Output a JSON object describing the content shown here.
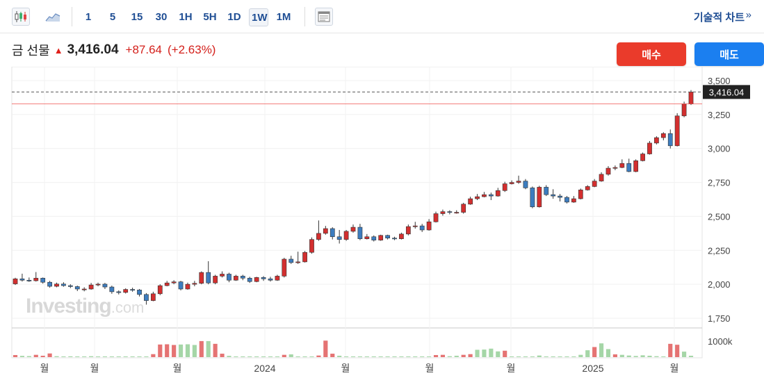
{
  "toolbar": {
    "chart_type_icons": [
      "candlestick-icon",
      "area-chart-icon"
    ],
    "intervals": [
      "1",
      "5",
      "15",
      "30",
      "1H",
      "5H",
      "1D",
      "1W",
      "1M"
    ],
    "active_interval": "1W",
    "extra_icon": "news-panel-icon",
    "tech_chart_label": "기술적 차트",
    "tech_chart_arrow": "»"
  },
  "quote": {
    "name": "금 선물",
    "direction": "up",
    "price": "3,416.04",
    "change": "+87.64",
    "change_pct": "(+2.63%)"
  },
  "buttons": {
    "buy": "매수",
    "sell": "매도"
  },
  "watermark": {
    "brand": "Investing",
    "suffix": ".com"
  },
  "colors": {
    "up": "#d32f2f",
    "down": "#3d7dbf",
    "vol_up": "#e57373",
    "vol_down": "#a5d6a7",
    "price_line": "#222222",
    "prev_close_line": "#ef5350"
  },
  "chart_data": {
    "type": "candlestick",
    "interval": "1W",
    "y_ticks": [
      "3,500",
      "3,250",
      "3,000",
      "2,750",
      "2,500",
      "2,250",
      "2,000",
      "1,750"
    ],
    "ylim": [
      1700,
      3560
    ],
    "current_price_label": "3,416.04",
    "current_price": 3416.04,
    "prev_close": 3328.4,
    "volume_tick": "1000k",
    "volume_max": 1000000,
    "x_labels": [
      "월",
      "월",
      "월",
      "2024",
      "월",
      "월",
      "월",
      "2025",
      "월"
    ],
    "grid": true,
    "candles": [
      [
        2003,
        2040,
        1995,
        2048
      ],
      [
        2040,
        2030,
        2020,
        2078
      ],
      [
        2030,
        2026,
        2018,
        2050
      ],
      [
        2026,
        2045,
        2020,
        2090
      ],
      [
        2045,
        2015,
        2005,
        2050
      ],
      [
        2015,
        1985,
        1975,
        2025
      ],
      [
        1985,
        2002,
        1978,
        2012
      ],
      [
        2002,
        1990,
        1982,
        2015
      ],
      [
        1990,
        1983,
        1972,
        2000
      ],
      [
        1983,
        1965,
        1950,
        1990
      ],
      [
        1965,
        1965,
        1948,
        1978
      ],
      [
        1965,
        1995,
        1960,
        2010
      ],
      [
        1995,
        2001,
        1985,
        2012
      ],
      [
        2001,
        1980,
        1965,
        2010
      ],
      [
        1980,
        1945,
        1930,
        1990
      ],
      [
        1945,
        1940,
        1925,
        1955
      ],
      [
        1940,
        1962,
        1932,
        1970
      ],
      [
        1962,
        1958,
        1945,
        1975
      ],
      [
        1958,
        1925,
        1910,
        1965
      ],
      [
        1925,
        1880,
        1850,
        1935
      ],
      [
        1880,
        1930,
        1875,
        1945
      ],
      [
        1930,
        1990,
        1920,
        2000
      ],
      [
        1990,
        2010,
        1985,
        2025
      ],
      [
        2010,
        2018,
        2000,
        2030
      ],
      [
        2018,
        1965,
        1955,
        2025
      ],
      [
        1965,
        2000,
        1960,
        2012
      ],
      [
        2000,
        2007,
        1985,
        2025
      ],
      [
        2007,
        2087,
        2000,
        2095
      ],
      [
        2087,
        2010,
        2000,
        2170
      ],
      [
        2010,
        2060,
        2000,
        2070
      ],
      [
        2060,
        2075,
        2050,
        2095
      ],
      [
        2075,
        2030,
        2015,
        2085
      ],
      [
        2030,
        2060,
        2025,
        2070
      ],
      [
        2060,
        2045,
        2030,
        2070
      ],
      [
        2045,
        2020,
        2010,
        2055
      ],
      [
        2020,
        2050,
        2015,
        2055
      ],
      [
        2050,
        2040,
        2025,
        2060
      ],
      [
        2040,
        2030,
        2020,
        2055
      ],
      [
        2030,
        2060,
        2025,
        2070
      ],
      [
        2060,
        2185,
        2050,
        2195
      ],
      [
        2185,
        2160,
        2150,
        2210
      ],
      [
        2160,
        2165,
        2150,
        2240
      ],
      [
        2165,
        2235,
        2160,
        2245
      ],
      [
        2235,
        2330,
        2225,
        2345
      ],
      [
        2330,
        2375,
        2320,
        2470
      ],
      [
        2375,
        2410,
        2365,
        2430
      ],
      [
        2410,
        2350,
        2330,
        2420
      ],
      [
        2350,
        2330,
        2300,
        2400
      ],
      [
        2330,
        2390,
        2320,
        2400
      ],
      [
        2390,
        2420,
        2380,
        2440
      ],
      [
        2420,
        2335,
        2325,
        2445
      ],
      [
        2335,
        2350,
        2330,
        2370
      ],
      [
        2350,
        2325,
        2315,
        2360
      ],
      [
        2325,
        2360,
        2320,
        2365
      ],
      [
        2360,
        2340,
        2330,
        2365
      ],
      [
        2340,
        2335,
        2325,
        2350
      ],
      [
        2335,
        2370,
        2330,
        2380
      ],
      [
        2370,
        2425,
        2360,
        2440
      ],
      [
        2425,
        2430,
        2410,
        2460
      ],
      [
        2430,
        2400,
        2385,
        2445
      ],
      [
        2400,
        2460,
        2395,
        2480
      ],
      [
        2460,
        2520,
        2455,
        2535
      ],
      [
        2520,
        2535,
        2505,
        2550
      ],
      [
        2535,
        2530,
        2515,
        2545
      ],
      [
        2530,
        2530,
        2520,
        2545
      ],
      [
        2530,
        2590,
        2520,
        2600
      ],
      [
        2590,
        2630,
        2585,
        2645
      ],
      [
        2630,
        2645,
        2620,
        2665
      ],
      [
        2645,
        2660,
        2640,
        2680
      ],
      [
        2660,
        2650,
        2620,
        2675
      ],
      [
        2650,
        2690,
        2645,
        2710
      ],
      [
        2690,
        2740,
        2680,
        2755
      ],
      [
        2740,
        2750,
        2735,
        2765
      ],
      [
        2750,
        2760,
        2740,
        2800
      ],
      [
        2760,
        2710,
        2700,
        2775
      ],
      [
        2710,
        2570,
        2560,
        2720
      ],
      [
        2570,
        2715,
        2565,
        2725
      ],
      [
        2715,
        2660,
        2650,
        2730
      ],
      [
        2660,
        2650,
        2630,
        2700
      ],
      [
        2650,
        2640,
        2610,
        2665
      ],
      [
        2640,
        2605,
        2595,
        2650
      ],
      [
        2605,
        2630,
        2600,
        2650
      ],
      [
        2630,
        2695,
        2625,
        2705
      ],
      [
        2695,
        2720,
        2690,
        2730
      ],
      [
        2720,
        2760,
        2715,
        2775
      ],
      [
        2760,
        2810,
        2755,
        2825
      ],
      [
        2810,
        2855,
        2800,
        2870
      ],
      [
        2855,
        2860,
        2840,
        2875
      ],
      [
        2860,
        2890,
        2855,
        2920
      ],
      [
        2890,
        2830,
        2825,
        2925
      ],
      [
        2830,
        2910,
        2825,
        2920
      ],
      [
        2910,
        2960,
        2905,
        2970
      ],
      [
        2960,
        3040,
        2955,
        3055
      ],
      [
        3040,
        3080,
        3030,
        3090
      ],
      [
        3080,
        3110,
        3060,
        3120
      ],
      [
        3110,
        3020,
        3000,
        3140
      ],
      [
        3020,
        3240,
        3015,
        3260
      ],
      [
        3240,
        3328,
        3230,
        3345
      ],
      [
        3328,
        3416,
        3320,
        3430
      ]
    ],
    "volumes": [
      [
        90000,
        "up"
      ],
      [
        55000,
        "down"
      ],
      [
        45000,
        "down"
      ],
      [
        100000,
        "up"
      ],
      [
        60000,
        "up"
      ],
      [
        160000,
        "up"
      ],
      [
        40000,
        "down"
      ],
      [
        30000,
        "down"
      ],
      [
        35000,
        "down"
      ],
      [
        20000,
        "down"
      ],
      [
        30000,
        "down"
      ],
      [
        40000,
        "down"
      ],
      [
        20000,
        "down"
      ],
      [
        10000,
        "down"
      ],
      [
        15000,
        "down"
      ],
      [
        20000,
        "down"
      ],
      [
        25000,
        "down"
      ],
      [
        30000,
        "down"
      ],
      [
        20000,
        "down"
      ],
      [
        15000,
        "down"
      ],
      [
        130000,
        "up"
      ],
      [
        550000,
        "up"
      ],
      [
        560000,
        "up"
      ],
      [
        530000,
        "up"
      ],
      [
        550000,
        "down"
      ],
      [
        560000,
        "down"
      ],
      [
        530000,
        "down"
      ],
      [
        700000,
        "up"
      ],
      [
        700000,
        "down"
      ],
      [
        580000,
        "up"
      ],
      [
        150000,
        "up"
      ],
      [
        55000,
        "down"
      ],
      [
        25000,
        "down"
      ],
      [
        15000,
        "down"
      ],
      [
        10000,
        "down"
      ],
      [
        10000,
        "down"
      ],
      [
        20000,
        "down"
      ],
      [
        10000,
        "down"
      ],
      [
        20000,
        "down"
      ],
      [
        100000,
        "up"
      ],
      [
        120000,
        "down"
      ],
      [
        15000,
        "down"
      ],
      [
        20000,
        "down"
      ],
      [
        25000,
        "down"
      ],
      [
        70000,
        "up"
      ],
      [
        720000,
        "up"
      ],
      [
        150000,
        "up"
      ],
      [
        60000,
        "down"
      ],
      [
        20000,
        "down"
      ],
      [
        15000,
        "down"
      ],
      [
        15000,
        "down"
      ],
      [
        10000,
        "down"
      ],
      [
        10000,
        "down"
      ],
      [
        10000,
        "down"
      ],
      [
        10000,
        "down"
      ],
      [
        10000,
        "down"
      ],
      [
        10000,
        "down"
      ],
      [
        10000,
        "down"
      ],
      [
        15000,
        "down"
      ],
      [
        10000,
        "down"
      ],
      [
        30000,
        "down"
      ],
      [
        90000,
        "up"
      ],
      [
        100000,
        "up"
      ],
      [
        40000,
        "down"
      ],
      [
        60000,
        "down"
      ],
      [
        100000,
        "up"
      ],
      [
        130000,
        "up"
      ],
      [
        320000,
        "down"
      ],
      [
        330000,
        "down"
      ],
      [
        370000,
        "down"
      ],
      [
        250000,
        "down"
      ],
      [
        280000,
        "up"
      ],
      [
        10000,
        "down"
      ],
      [
        20000,
        "down"
      ],
      [
        15000,
        "down"
      ],
      [
        10000,
        "down"
      ],
      [
        70000,
        "down"
      ],
      [
        30000,
        "down"
      ],
      [
        10000,
        "down"
      ],
      [
        10000,
        "down"
      ],
      [
        10000,
        "down"
      ],
      [
        20000,
        "down"
      ],
      [
        100000,
        "down"
      ],
      [
        300000,
        "down"
      ],
      [
        440000,
        "up"
      ],
      [
        600000,
        "down"
      ],
      [
        350000,
        "down"
      ],
      [
        120000,
        "up"
      ],
      [
        100000,
        "down"
      ],
      [
        70000,
        "down"
      ],
      [
        50000,
        "down"
      ],
      [
        80000,
        "down"
      ],
      [
        60000,
        "down"
      ],
      [
        40000,
        "down"
      ],
      [
        30000,
        "down"
      ],
      [
        580000,
        "up"
      ],
      [
        540000,
        "up"
      ],
      [
        240000,
        "down"
      ],
      [
        60000,
        "down"
      ]
    ]
  }
}
